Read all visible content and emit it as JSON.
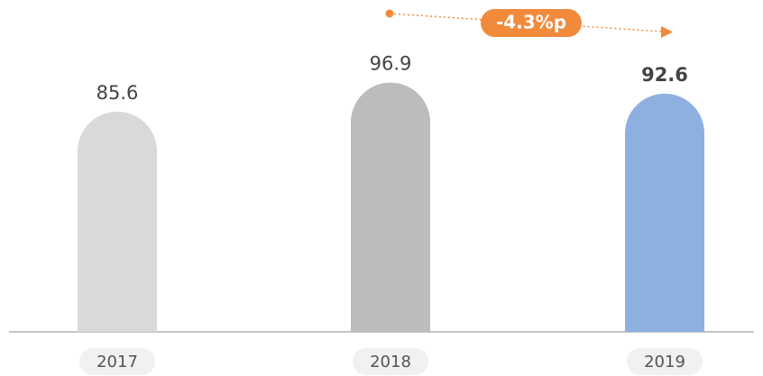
{
  "chart_data": {
    "type": "bar",
    "categories": [
      "2017",
      "2018",
      "2019"
    ],
    "values": [
      85.6,
      96.9,
      92.6
    ],
    "colors": [
      "#d9d9d9",
      "#bcbcbc",
      "#8eb0e0"
    ],
    "ylim": [
      0,
      129
    ],
    "annotation": "-4.3%p"
  }
}
